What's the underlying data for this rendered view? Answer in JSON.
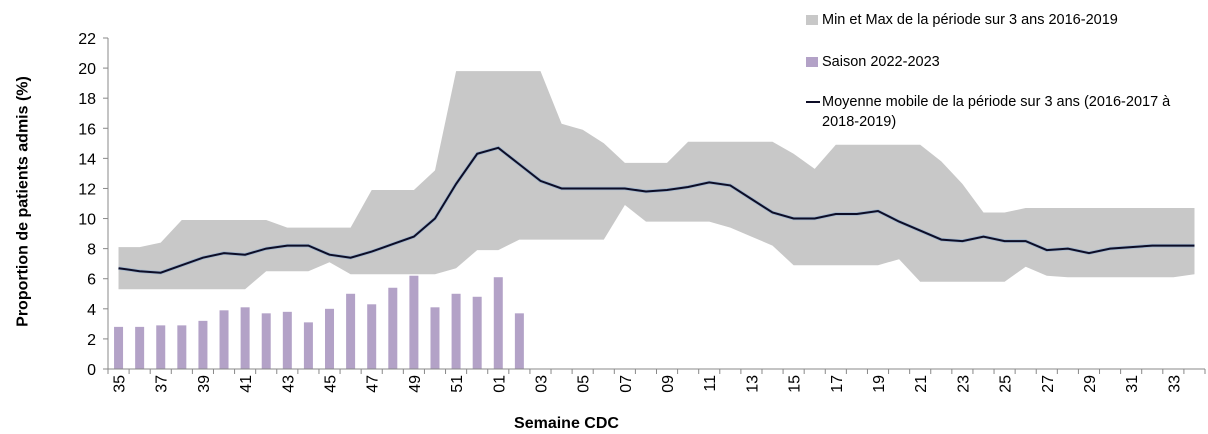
{
  "chart_data": {
    "type": "line",
    "y_label": "Proportion de patients admis (%)",
    "x_label": "Semaine CDC",
    "categories": [
      "35",
      null,
      "37",
      null,
      "39",
      null,
      "41",
      null,
      "43",
      null,
      "45",
      null,
      "47",
      null,
      "49",
      null,
      "51",
      null,
      "01",
      null,
      "03",
      null,
      "05",
      null,
      "07",
      null,
      "09",
      null,
      "11",
      null,
      "13",
      null,
      "15",
      null,
      "17",
      null,
      "19",
      null,
      "21",
      null,
      "23",
      null,
      "25",
      null,
      "27",
      null,
      "29",
      null,
      "31",
      null,
      "33",
      null
    ],
    "ylim": [
      0,
      22
    ],
    "yticks": [
      0,
      2,
      4,
      6,
      8,
      10,
      12,
      14,
      16,
      18,
      20,
      22
    ],
    "grid": false,
    "series": [
      {
        "name": "Min et Max de la période sur 3 ans 2016-2019",
        "type": "band",
        "color": "#c8c8c8",
        "lower": [
          5.3,
          5.3,
          5.3,
          5.3,
          5.3,
          5.3,
          5.3,
          6.5,
          6.5,
          6.5,
          7.1,
          6.3,
          6.3,
          6.3,
          6.3,
          6.3,
          6.7,
          7.9,
          7.9,
          8.6,
          8.6,
          8.6,
          8.6,
          8.6,
          10.9,
          9.8,
          9.8,
          9.8,
          9.8,
          9.4,
          8.8,
          8.2,
          6.9,
          6.9,
          6.9,
          6.9,
          6.9,
          7.3,
          5.8,
          5.8,
          5.8,
          5.8,
          5.8,
          6.8,
          6.2,
          6.1,
          6.1,
          6.1,
          6.1,
          6.1,
          6.1,
          6.3
        ],
        "upper": [
          8.1,
          8.1,
          8.4,
          9.9,
          9.9,
          9.9,
          9.9,
          9.9,
          9.4,
          9.4,
          9.4,
          9.4,
          11.9,
          11.9,
          11.9,
          13.2,
          19.8,
          19.8,
          19.8,
          19.8,
          19.8,
          16.3,
          15.9,
          15.0,
          13.7,
          13.7,
          13.7,
          15.1,
          15.1,
          15.1,
          15.1,
          15.1,
          14.3,
          13.3,
          14.9,
          14.9,
          14.9,
          14.9,
          14.9,
          13.8,
          12.3,
          10.4,
          10.4,
          10.7,
          10.7,
          10.7,
          10.7,
          10.7,
          10.7,
          10.7,
          10.7,
          10.7
        ]
      },
      {
        "name": "Saison 2022-2023",
        "type": "bar",
        "color": "#b3a2c7",
        "values": [
          2.8,
          2.8,
          2.9,
          2.9,
          3.2,
          3.9,
          4.1,
          3.7,
          3.8,
          3.1,
          4.0,
          5.0,
          4.3,
          5.4,
          6.2,
          4.1,
          5.0,
          4.8,
          6.1,
          3.7,
          null,
          null,
          null,
          null,
          null,
          null,
          null,
          null,
          null,
          null,
          null,
          null,
          null,
          null,
          null,
          null,
          null,
          null,
          null,
          null,
          null,
          null,
          null,
          null,
          null,
          null,
          null,
          null,
          null,
          null,
          null,
          null
        ]
      },
      {
        "name": "Moyenne mobile de la période sur 3 ans (2016-2017 à 2018-2019)",
        "type": "line",
        "color": "#0d0d26",
        "values": [
          6.7,
          6.5,
          6.4,
          6.9,
          7.4,
          7.7,
          7.6,
          8.0,
          8.2,
          8.2,
          7.6,
          7.4,
          7.8,
          8.3,
          8.8,
          10.0,
          12.3,
          14.3,
          14.7,
          13.6,
          12.5,
          12.0,
          12.0,
          12.0,
          12.0,
          11.8,
          11.9,
          12.1,
          12.4,
          12.2,
          11.3,
          10.4,
          10.0,
          10.0,
          10.3,
          10.3,
          10.5,
          9.8,
          9.2,
          8.6,
          8.5,
          8.8,
          8.5,
          8.5,
          7.9,
          8.0,
          7.7,
          8.0,
          8.1,
          8.2,
          8.2,
          8.2
        ]
      }
    ]
  }
}
